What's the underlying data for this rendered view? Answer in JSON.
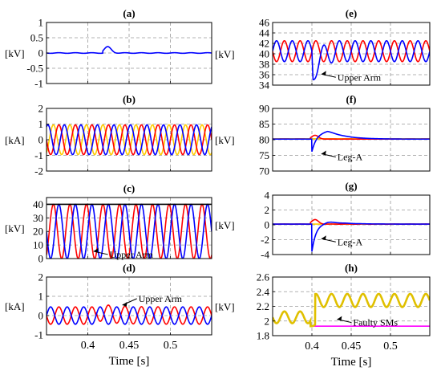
{
  "chart_data": [
    {
      "type": "line",
      "title": "(a)",
      "ylabel": "[kV]",
      "xlabel": "",
      "xlim": [
        0.35,
        0.55
      ],
      "ylim": [
        -1,
        1
      ],
      "yticks": [
        "-1",
        "-0.5",
        "0",
        "0.5",
        "1"
      ],
      "xticks": [],
      "grid": true,
      "series": [
        {
          "color": "#0000ff",
          "shape": "dc_fault_bump",
          "level": 0.0,
          "peak": 0.2,
          "t_fault": 0.42
        }
      ]
    },
    {
      "type": "line",
      "title": "(b)",
      "ylabel": "[kA]",
      "xlabel": "",
      "xlim": [
        0.35,
        0.55
      ],
      "ylim": [
        -2,
        2
      ],
      "yticks": [
        "-2",
        "-1",
        "0",
        "1",
        "2"
      ],
      "xticks": [],
      "grid": true,
      "series": [
        {
          "color": "#ffcc00",
          "shape": "sine",
          "offset": 0,
          "amp": 0.95,
          "freq": 50,
          "phase": 2.094
        },
        {
          "color": "#ff0000",
          "shape": "sine",
          "offset": 0,
          "amp": 0.95,
          "freq": 50,
          "phase": 0
        },
        {
          "color": "#0000ff",
          "shape": "sine",
          "offset": 0,
          "amp": 0.95,
          "freq": 50,
          "phase": -2.094
        }
      ]
    },
    {
      "type": "line",
      "title": "(c)",
      "ylabel": "[kV]",
      "xlabel": "",
      "xlim": [
        0.35,
        0.55
      ],
      "ylim": [
        0,
        45
      ],
      "yticks": [
        "0",
        "10",
        "20",
        "30",
        "40"
      ],
      "xticks": [],
      "grid": true,
      "annotations": [
        {
          "text": "Upper Arm",
          "x": 0.405,
          "y": 3
        }
      ],
      "series": [
        {
          "color": "#ff0000",
          "shape": "sine",
          "offset": 20,
          "amp": 20,
          "freq": 50,
          "phase": 2.094
        },
        {
          "color": "#0000ff",
          "shape": "sine",
          "offset": 20,
          "amp": 20,
          "freq": 50,
          "phase": 0
        },
        {
          "color": "#000000",
          "shape": "flat",
          "level": 40
        }
      ]
    },
    {
      "type": "line",
      "title": "(d)",
      "ylabel": "[kA]",
      "xlabel": "",
      "xlim": [
        0.35,
        0.55
      ],
      "ylim": [
        -1,
        2
      ],
      "yticks": [
        "-1",
        "0",
        "1",
        "2"
      ],
      "xticks": [],
      "grid": true,
      "annotations": [
        {
          "text": "Upper Arm",
          "x": 0.44,
          "y": 0.88
        }
      ],
      "series": [
        {
          "color": "#ff0000",
          "shape": "sine_bump",
          "offset": 0,
          "amp": 0.45,
          "freq": 50,
          "phase": 0,
          "t_fault": 0.41,
          "bump": 0.2
        },
        {
          "color": "#0000ff",
          "shape": "sine",
          "offset": 0,
          "amp": 0.45,
          "freq": 50,
          "phase": 3.14159
        }
      ]
    },
    {
      "type": "line",
      "title": "(e)",
      "ylabel": "[kV]",
      "xlabel": "",
      "xlim": [
        0.35,
        0.55
      ],
      "ylim": [
        34,
        46
      ],
      "yticks": [
        "34",
        "36",
        "38",
        "40",
        "42",
        "44",
        "46"
      ],
      "xticks": [],
      "grid": true,
      "annotations": [
        {
          "text": "Upper Arm",
          "x": 0.41,
          "y": 35.5
        }
      ],
      "series": [
        {
          "color": "#ff0000",
          "shape": "sine",
          "offset": 40.5,
          "amp": 2,
          "freq": 50,
          "phase": 0
        },
        {
          "color": "#0000ff",
          "shape": "sine_dip",
          "offset": 40.5,
          "amp": 2,
          "freq": 50,
          "phase": 3.14159,
          "t_fault": 0.4,
          "dip": 5.5
        }
      ]
    },
    {
      "type": "line",
      "title": "(f)",
      "ylabel": "[kV]",
      "xlabel": "",
      "xlim": [
        0.35,
        0.55
      ],
      "ylim": [
        70,
        90
      ],
      "yticks": [
        "70",
        "75",
        "80",
        "85",
        "90"
      ],
      "xticks": [],
      "grid": true,
      "annotations": [
        {
          "text": "Leg-A",
          "x": 0.41,
          "y": 74.5
        }
      ],
      "series": [
        {
          "color": "#ffcc00",
          "shape": "flat",
          "level": 80.3
        },
        {
          "color": "#ff0000",
          "shape": "dc_fault_bump",
          "level": 80.2,
          "peak": 1.2,
          "t_fault": 0.4
        },
        {
          "color": "#0000ff",
          "shape": "leg_transient",
          "level": 80.2,
          "dip": -4,
          "peak": 3,
          "t_fault": 0.4
        }
      ]
    },
    {
      "type": "line",
      "title": "(g)",
      "ylabel": "[kV]",
      "xlabel": "",
      "xlim": [
        0.35,
        0.55
      ],
      "ylim": [
        -4,
        4
      ],
      "yticks": [
        "-4",
        "-2",
        "0",
        "2",
        "4"
      ],
      "xticks": [],
      "grid": true,
      "annotations": [
        {
          "text": "Leg-A",
          "x": 0.41,
          "y": -2.3
        }
      ],
      "series": [
        {
          "color": "#ffcc00",
          "shape": "flat",
          "level": 0.1
        },
        {
          "color": "#ff0000",
          "shape": "dc_fault_bump",
          "level": 0.1,
          "peak": 0.6,
          "t_fault": 0.4
        },
        {
          "color": "#0000ff",
          "shape": "leg_transient",
          "level": 0.1,
          "dip": -3.7,
          "peak": 0.4,
          "t_fault": 0.4
        }
      ]
    },
    {
      "type": "line",
      "title": "(h)",
      "ylabel": "[kV]",
      "xlabel": "Time [s]",
      "xlim": [
        0.35,
        0.55
      ],
      "ylim": [
        1.8,
        2.6
      ],
      "yticks": [
        "1.8",
        "2",
        "2.2",
        "2.4",
        "2.6"
      ],
      "xticks": [
        "0.4",
        "0.45",
        "0.5"
      ],
      "grid": true,
      "annotations": [
        {
          "text": "Faulty SMs",
          "x": 0.43,
          "y": 1.98
        }
      ],
      "series": [
        {
          "color": "#ff00ff",
          "shape": "step_flat",
          "level": 1.93,
          "t_start": 0.4
        },
        {
          "color": "#e0c000",
          "shape": "sm_voltage",
          "before": 2.05,
          "after": 2.28,
          "amp": 0.09,
          "freq": 50,
          "t_fault": 0.4
        }
      ]
    }
  ],
  "bottom_left_xlabel": "Time [s]",
  "bottom_left_xticks": [
    "0.4",
    "0.45",
    "0.5"
  ]
}
